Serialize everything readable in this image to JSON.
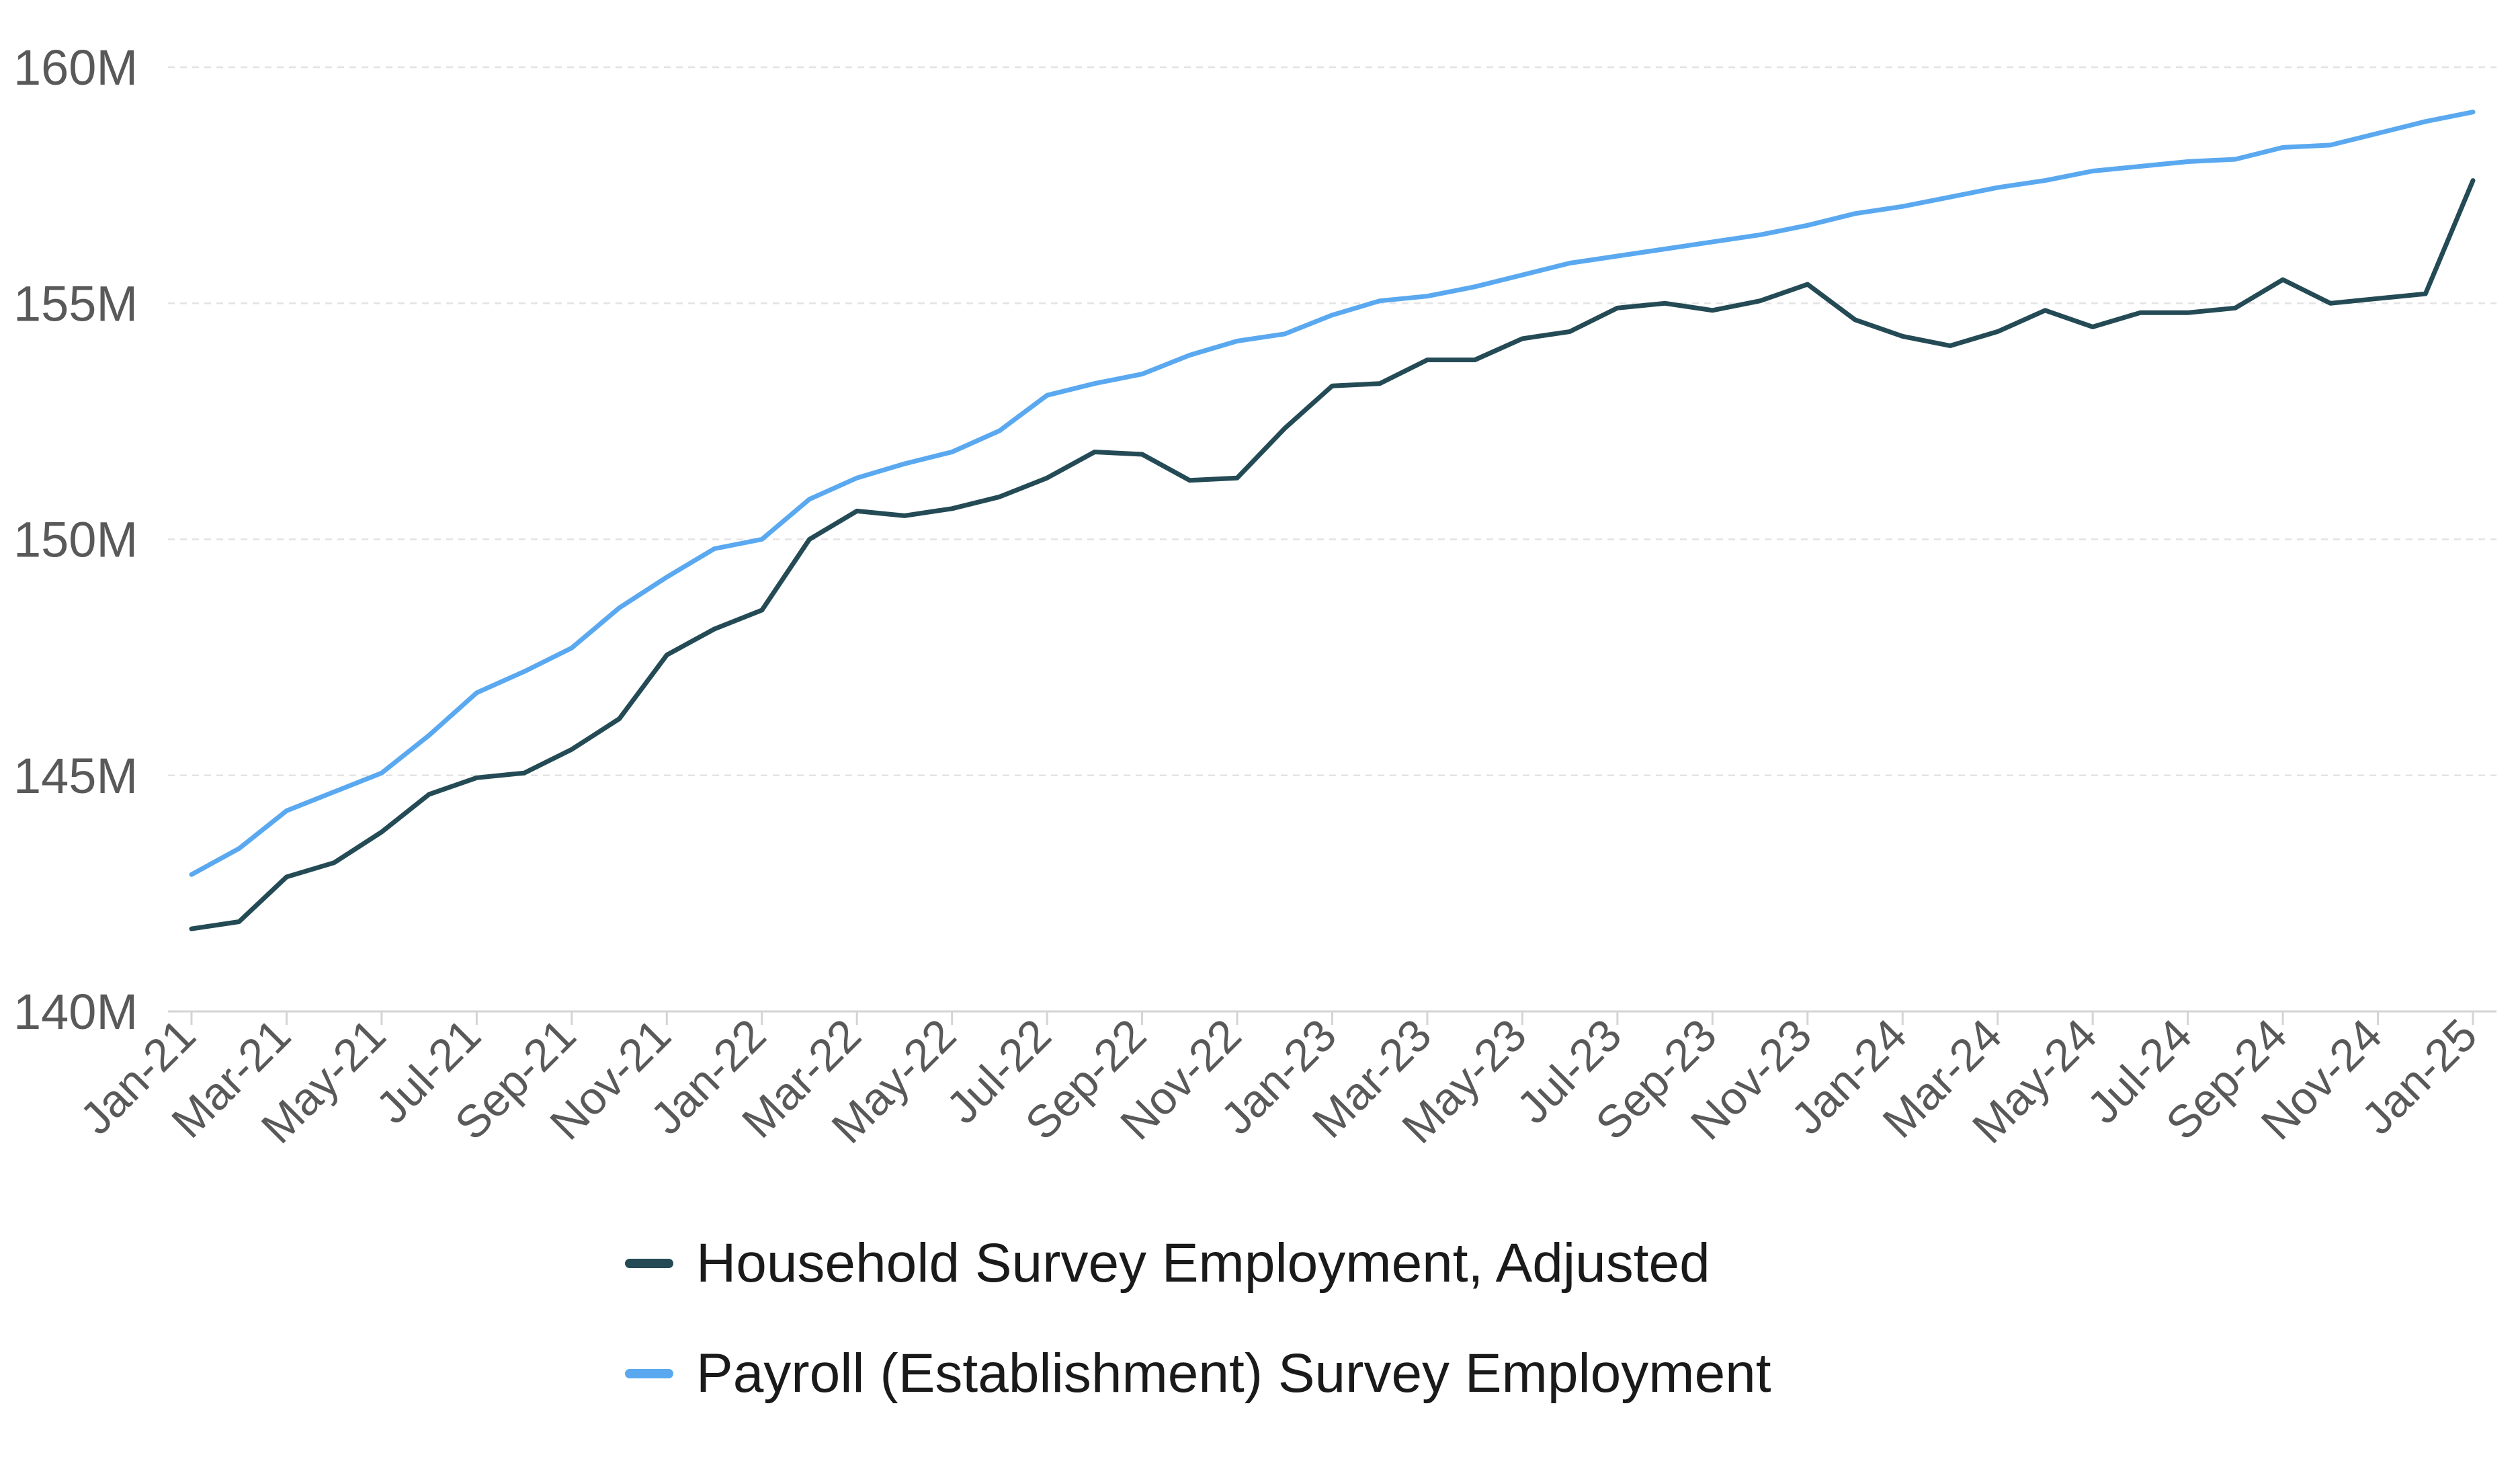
{
  "chart_data": {
    "type": "line",
    "title": "",
    "xlabel": "",
    "ylabel": "",
    "ylim": [
      140,
      160
    ],
    "y_unit_suffix": "M",
    "y_ticks": [
      140,
      145,
      150,
      155,
      160
    ],
    "y_tick_labels": [
      "140M",
      "145M",
      "150M",
      "155M",
      "160M"
    ],
    "grid": "horizontal dashed",
    "legend_placement": "bottom",
    "x": [
      "Jan-21",
      "Feb-21",
      "Mar-21",
      "Apr-21",
      "May-21",
      "Jun-21",
      "Jul-21",
      "Aug-21",
      "Sep-21",
      "Oct-21",
      "Nov-21",
      "Dec-21",
      "Jan-22",
      "Feb-22",
      "Mar-22",
      "Apr-22",
      "May-22",
      "Jun-22",
      "Jul-22",
      "Aug-22",
      "Sep-22",
      "Oct-22",
      "Nov-22",
      "Dec-22",
      "Jan-23",
      "Feb-23",
      "Mar-23",
      "Apr-23",
      "May-23",
      "Jun-23",
      "Jul-23",
      "Aug-23",
      "Sep-23",
      "Oct-23",
      "Nov-23",
      "Dec-23",
      "Jan-24",
      "Feb-24",
      "Mar-24",
      "Apr-24",
      "May-24",
      "Jun-24",
      "Jul-24",
      "Aug-24",
      "Sep-24",
      "Oct-24",
      "Nov-24",
      "Dec-24",
      "Jan-25"
    ],
    "x_tick_labels": [
      "Jan-21",
      "Mar-21",
      "May-21",
      "Jul-21",
      "Sep-21",
      "Nov-21",
      "Jan-22",
      "Mar-22",
      "May-22",
      "Jul-22",
      "Sep-22",
      "Nov-22",
      "Jan-23",
      "Mar-23",
      "May-23",
      "Jul-23",
      "Sep-23",
      "Nov-23",
      "Jan-24",
      "Mar-24",
      "May-24",
      "Jul-24",
      "Sep-24",
      "Nov-24",
      "Jan-25"
    ],
    "series": [
      {
        "name": "Household Survey Employment, Adjusted",
        "color": "#244b55",
        "values": [
          141.75,
          141.9,
          142.85,
          143.15,
          143.8,
          144.6,
          144.95,
          145.05,
          145.55,
          146.2,
          147.55,
          148.1,
          148.5,
          150.0,
          150.6,
          150.5,
          150.65,
          150.9,
          151.3,
          151.85,
          151.8,
          151.25,
          151.3,
          152.35,
          153.25,
          153.3,
          153.8,
          153.8,
          154.25,
          154.4,
          154.9,
          155.0,
          154.85,
          155.05,
          155.4,
          154.65,
          154.3,
          154.1,
          154.4,
          154.85,
          154.5,
          154.8,
          154.8,
          154.9,
          155.5,
          155.0,
          155.1,
          155.2,
          157.6
        ]
      },
      {
        "name": "Payroll (Establishment) Survey Employment",
        "color": "#5aa9f0",
        "values": [
          142.9,
          143.45,
          144.25,
          144.65,
          145.05,
          145.85,
          146.75,
          147.2,
          147.7,
          148.55,
          149.2,
          149.8,
          150.0,
          150.85,
          151.3,
          151.6,
          151.85,
          152.3,
          153.05,
          153.3,
          153.5,
          153.9,
          154.2,
          154.35,
          154.75,
          155.05,
          155.15,
          155.35,
          155.6,
          155.85,
          156.0,
          156.15,
          156.3,
          156.45,
          156.65,
          156.9,
          157.05,
          157.25,
          157.45,
          157.6,
          157.8,
          157.9,
          158.0,
          158.05,
          158.3,
          158.35,
          158.6,
          158.85,
          159.05
        ]
      }
    ]
  }
}
